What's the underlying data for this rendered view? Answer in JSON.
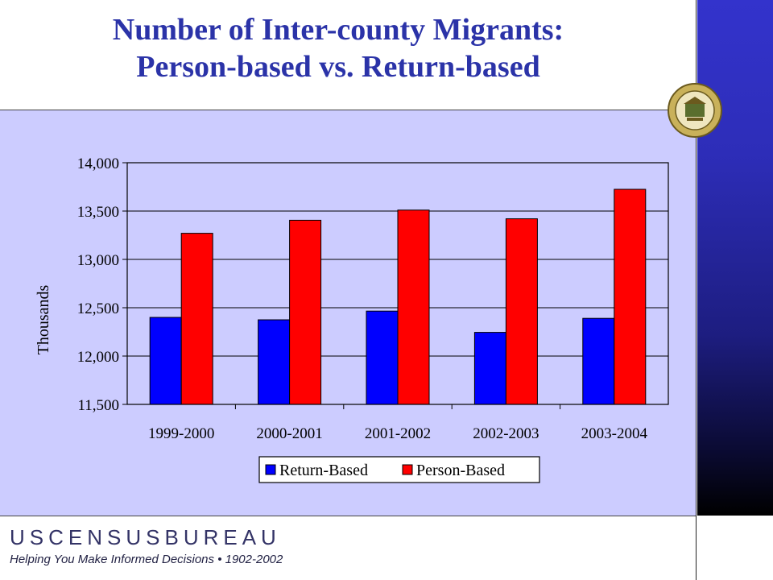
{
  "title_line1": "Number of Inter-county Migrants:",
  "title_line2": "Person-based vs. Return-based",
  "footer": {
    "brand": "USCENSUSBUREAU",
    "tagline": "Helping You Make Informed Decisions • 1902-2002"
  },
  "seal_icon": "us-department-of-commerce-seal",
  "colors": {
    "return_based": "#0000ff",
    "person_based": "#ff0000",
    "panel": "#ccccff",
    "title": "#2b33a8"
  },
  "chart_data": {
    "type": "bar",
    "categories": [
      "1999-2000",
      "2000-2001",
      "2001-2002",
      "2002-2003",
      "2003-2004"
    ],
    "series": [
      {
        "name": "Return-Based",
        "values": [
          12400,
          12375,
          12465,
          12245,
          12390
        ]
      },
      {
        "name": "Person-Based",
        "values": [
          13270,
          13405,
          13510,
          13420,
          13725
        ]
      }
    ],
    "ylabel": "Thousands",
    "xlabel": "",
    "ylim": [
      11500,
      14000
    ],
    "yticks": [
      11500,
      12000,
      12500,
      13000,
      13500,
      14000
    ],
    "ytick_labels": [
      "11,500",
      "12,000",
      "12,500",
      "13,000",
      "13,500",
      "14,000"
    ],
    "grid": true,
    "legend_position": "bottom"
  }
}
